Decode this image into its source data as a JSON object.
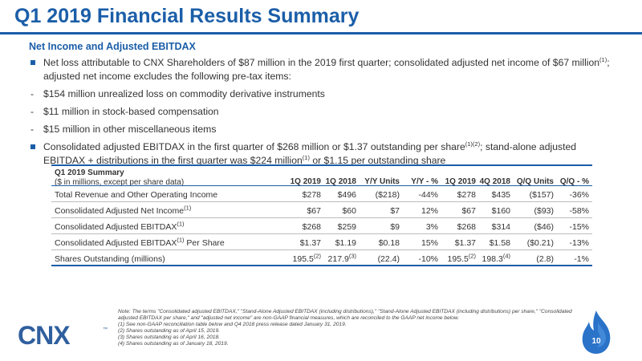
{
  "title": "Q1 2019 Financial Results Summary",
  "subtitle": "Net Income and Adjusted EBITDAX",
  "bullet1": {
    "text_a": "Net loss attributable to CNX Shareholders of $87 million in the 2019 first quarter; consolidated adjusted net income of $67 million",
    "sup": "(1)",
    "text_b": "; adjusted net income excludes the following pre-tax items:"
  },
  "subitems": [
    "$154 million unrealized loss on commodity derivative instruments",
    "$11 million in stock-based compensation",
    "$15 million in other miscellaneous items"
  ],
  "dash": "-",
  "bullet2": {
    "text_a": "Consolidated adjusted EBITDAX in the first quarter of $268 million or $1.37 outstanding per share",
    "sup_a": "(1)(2)",
    "text_b": "; stand-alone adjusted EBITDAX + distributions in the first quarter was $224 million",
    "sup_b": "(1)",
    "text_c": " or $1.15 per outstanding share"
  },
  "table": {
    "caption_title": "Q1 2019 Summary",
    "caption_sub": "($ in millions, except per share data)",
    "headers": [
      "1Q 2019",
      "1Q 2018",
      "Y/Y Units",
      "Y/Y - %",
      "1Q 2019",
      "4Q 2018",
      "Q/Q Units",
      "Q/Q - %"
    ],
    "rows": [
      {
        "label": "Total Revenue and Other Operating Income",
        "label_sup": "",
        "label_tail": "",
        "cells": [
          "$278",
          "$496",
          "($218)",
          "-44%",
          "$278",
          "$435",
          "($157)",
          "-36%"
        ],
        "cell_sups": [
          "",
          "",
          "",
          "",
          "",
          "",
          "",
          ""
        ]
      },
      {
        "label": "Consolidated Adjusted Net Income",
        "label_sup": "(1)",
        "label_tail": "",
        "cells": [
          "$67",
          "$60",
          "$7",
          "12%",
          "$67",
          "$160",
          "($93)",
          "-58%"
        ],
        "cell_sups": [
          "",
          "",
          "",
          "",
          "",
          "",
          "",
          ""
        ]
      },
      {
        "label": "Consolidated Adjusted EBITDAX",
        "label_sup": "(1)",
        "label_tail": "",
        "cells": [
          "$268",
          "$259",
          "$9",
          "3%",
          "$268",
          "$314",
          "($46)",
          "-15%"
        ],
        "cell_sups": [
          "",
          "",
          "",
          "",
          "",
          "",
          "",
          ""
        ]
      },
      {
        "label": "Consolidated Adjusted EBITDAX",
        "label_sup": "(1)",
        "label_tail": " Per Share",
        "cells": [
          "$1.37",
          "$1.19",
          "$0.18",
          "15%",
          "$1.37",
          "$1.58",
          "($0.21)",
          "-13%"
        ],
        "cell_sups": [
          "",
          "",
          "",
          "",
          "",
          "",
          "",
          ""
        ]
      },
      {
        "label": "Shares Outstanding (millions)",
        "label_sup": "",
        "label_tail": "",
        "cells": [
          "195.5",
          "217.9",
          "(22.4)",
          "-10%",
          "195.5",
          "198.3",
          "(2.8)",
          "-1%"
        ],
        "cell_sups": [
          "(2)",
          "(3)",
          "",
          "",
          "(2)",
          "(4)",
          "",
          ""
        ]
      }
    ]
  },
  "notes": [
    "Note: The terms \"Consolidated adjusted EBITDAX,\" \"Stand-Alone Adjusted EBITDAX (including distributions),\" \"Stand-Alone Adjusted EBITDAX (including distributions) per share,\" \"Consolidated adjusted EBITDAX per share,\" and \"adjusted net income\" are non-GAAP financial measures, which are reconciled to the GAAP net income below.",
    "(1)   See non-GAAP reconciliation table below and Q4 2018 press release dated January 31, 2019.",
    "(2)   Shares outstanding as of April 15, 2019.",
    "(3)   Shares outstanding as of April 16, 2018.",
    "(4)   Shares outstanding as of January 18, 2019."
  ],
  "logo": {
    "text": "CNX",
    "tm": "™"
  },
  "page_number": "10",
  "colors": {
    "brand_blue": "#1b5ea8",
    "logo_blue": "#2f5f9e"
  }
}
